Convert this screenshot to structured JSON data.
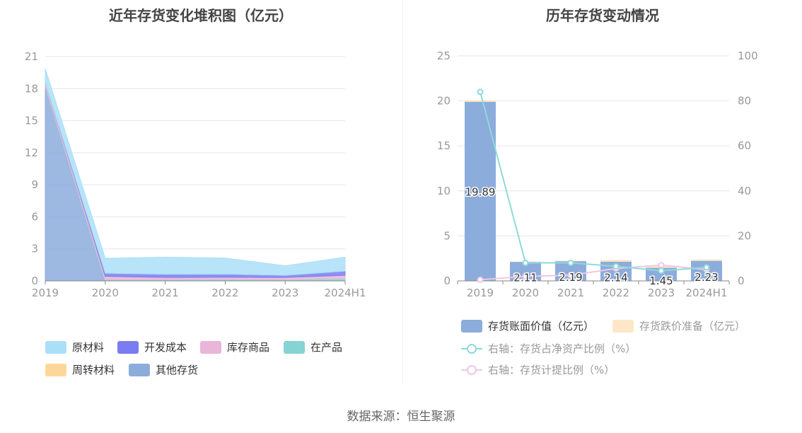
{
  "left_title": "近年存货变化堆积图（亿元）",
  "right_title": "历年存货变动情况",
  "source": "数据来源：恒生聚源",
  "legend_left": [
    {
      "label": "原材料",
      "color": "#aadff8"
    },
    {
      "label": "开发成本",
      "color": "#7b7cf0"
    },
    {
      "label": "库存商品",
      "color": "#e9b5d9"
    },
    {
      "label": "在产品",
      "color": "#86d3d4"
    },
    {
      "label": "周转材料",
      "color": "#fdd79a"
    },
    {
      "label": "其他存货",
      "color": "#8cacdc"
    }
  ],
  "legend_right": [
    {
      "label": "存货账面价值（亿元）",
      "color": "#8cacdc",
      "kind": "bar"
    },
    {
      "label": "存货跌价准备（亿元）",
      "color": "#fde7c6",
      "kind": "bar"
    },
    {
      "label": "右轴：存货占净资产比例（%）",
      "color": "#8fd9d9",
      "kind": "line"
    },
    {
      "label": "右轴：存货计提比例（%）",
      "color": "#efc7e4",
      "kind": "line"
    }
  ],
  "chart_data": [
    {
      "type": "area",
      "title": "近年存货变化堆积图（亿元）",
      "stacked": true,
      "categories": [
        "2019",
        "2020",
        "2021",
        "2022",
        "2023",
        "2024H1"
      ],
      "ylim": [
        0,
        21
      ],
      "yticks": [
        0,
        3,
        6,
        9,
        12,
        15,
        18,
        21
      ],
      "grid": true,
      "legend_position": "bottom",
      "series": [
        {
          "name": "其他存货",
          "color": "#8cacdc",
          "values": [
            18.2,
            0.0,
            0.0,
            0.0,
            0.0,
            0.0
          ]
        },
        {
          "name": "周转材料",
          "color": "#fdd79a",
          "values": [
            0.02,
            0.02,
            0.02,
            0.02,
            0.02,
            0.02
          ]
        },
        {
          "name": "在产品",
          "color": "#86d3d4",
          "values": [
            0.05,
            0.1,
            0.1,
            0.12,
            0.1,
            0.2
          ]
        },
        {
          "name": "库存商品",
          "color": "#e9b5d9",
          "values": [
            0.3,
            0.3,
            0.2,
            0.2,
            0.2,
            0.3
          ]
        },
        {
          "name": "开发成本",
          "color": "#7b7cf0",
          "values": [
            0.0,
            0.3,
            0.3,
            0.3,
            0.2,
            0.4
          ]
        },
        {
          "name": "原材料",
          "color": "#aadff8",
          "values": [
            1.3,
            1.4,
            1.6,
            1.5,
            0.9,
            1.3
          ]
        }
      ]
    },
    {
      "type": "bar",
      "title": "历年存货变动情况",
      "categories": [
        "2019",
        "2020",
        "2021",
        "2022",
        "2023",
        "2024H1"
      ],
      "ylim": [
        0,
        25
      ],
      "yticks": [
        0,
        5,
        10,
        15,
        20,
        25
      ],
      "y2lim": [
        0,
        100
      ],
      "y2ticks": [
        0,
        20,
        40,
        60,
        80,
        100
      ],
      "grid": true,
      "legend_position": "bottom",
      "series": [
        {
          "name": "存货账面价值（亿元）",
          "type": "bar",
          "axis": "left",
          "color": "#8cacdc",
          "values": [
            19.89,
            2.11,
            2.19,
            2.14,
            1.45,
            2.23
          ],
          "labels": [
            "19.89",
            "2.11",
            "2.19",
            "2.14",
            "1.45",
            "2.23"
          ]
        },
        {
          "name": "存货跌价准备（亿元）",
          "type": "bar",
          "axis": "left",
          "color": "#fde7c6",
          "values": [
            0.2,
            0.05,
            0.05,
            0.2,
            0.25,
            0.15
          ]
        },
        {
          "name": "右轴：存货占净资产比例（%）",
          "type": "line",
          "axis": "right",
          "color": "#8fd9d9",
          "values": [
            84,
            8,
            8,
            6.5,
            4.5,
            6
          ]
        },
        {
          "name": "右轴：存货计提比例（%）",
          "type": "line",
          "axis": "right",
          "color": "#efc7e4",
          "values": [
            0.5,
            2,
            2.5,
            5.5,
            7,
            5
          ]
        }
      ]
    }
  ]
}
